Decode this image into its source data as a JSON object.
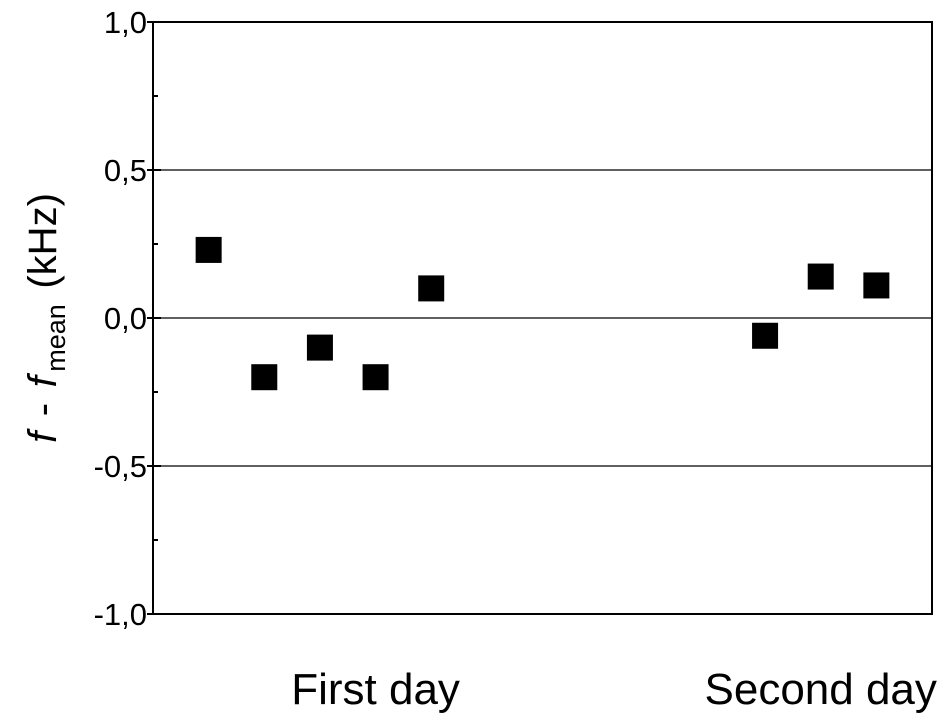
{
  "chart_data": {
    "type": "scatter",
    "title": "",
    "ylabel": {
      "main_a": "f",
      "dash": " - ",
      "main_b": "f",
      "subscript": "mean",
      "unit": " (kHz)"
    },
    "xlabel": "",
    "ylim": [
      -1.0,
      1.0
    ],
    "yticks": [
      {
        "value": 1.0,
        "label": "1,0"
      },
      {
        "value": 0.5,
        "label": "0,5"
      },
      {
        "value": 0.0,
        "label": "0,0"
      },
      {
        "value": -0.5,
        "label": "-0,5"
      },
      {
        "value": -1.0,
        "label": "-1,0"
      }
    ],
    "minor_y_step": 0.25,
    "xlim": [
      0,
      14
    ],
    "grid": {
      "horizontal": true,
      "values": [
        0.5,
        0.0,
        -0.5
      ]
    },
    "groups": [
      {
        "label": "First day",
        "center": 4
      },
      {
        "label": "Second day",
        "center": 12
      }
    ],
    "marker": {
      "shape": "square",
      "color": "#000000"
    },
    "points": [
      {
        "x": 1,
        "y": 0.23
      },
      {
        "x": 2,
        "y": -0.2
      },
      {
        "x": 3,
        "y": -0.1
      },
      {
        "x": 4,
        "y": -0.2
      },
      {
        "x": 5,
        "y": 0.1
      },
      {
        "x": 11,
        "y": -0.06
      },
      {
        "x": 12,
        "y": 0.14
      },
      {
        "x": 13,
        "y": 0.11
      }
    ]
  }
}
